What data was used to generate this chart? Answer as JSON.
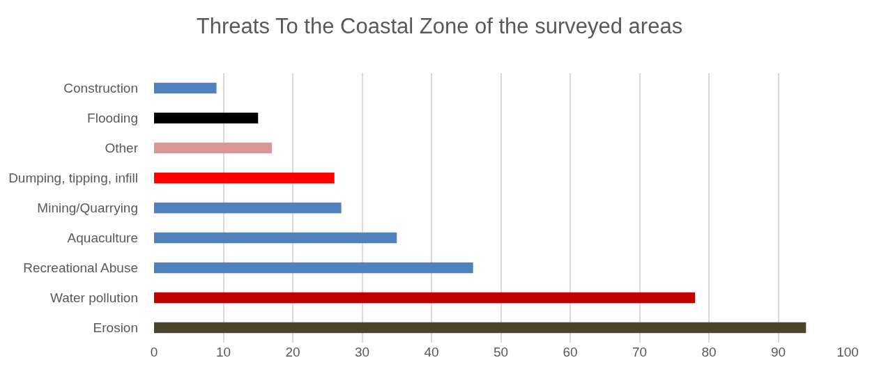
{
  "chart_data": {
    "type": "bar",
    "orientation": "horizontal",
    "title": "Threats To the Coastal Zone of the surveyed areas",
    "categories": [
      "Construction",
      "Flooding",
      "Other",
      "Dumping, tipping, infill",
      "Mining/Quarrying",
      "Aquaculture",
      "Recreational Abuse",
      "Water pollution",
      "Erosion"
    ],
    "values": [
      9,
      15,
      17,
      26,
      27,
      35,
      46,
      78,
      94
    ],
    "colors": [
      "#4f81bd",
      "#000000",
      "#d99694",
      "#ff0000",
      "#4f81bd",
      "#4f81bd",
      "#4f81bd",
      "#c00000",
      "#4a442a"
    ],
    "xlim": [
      0,
      100
    ],
    "xticks": [
      0,
      10,
      20,
      30,
      40,
      50,
      60,
      70,
      80,
      90,
      100
    ],
    "grid": "x"
  }
}
